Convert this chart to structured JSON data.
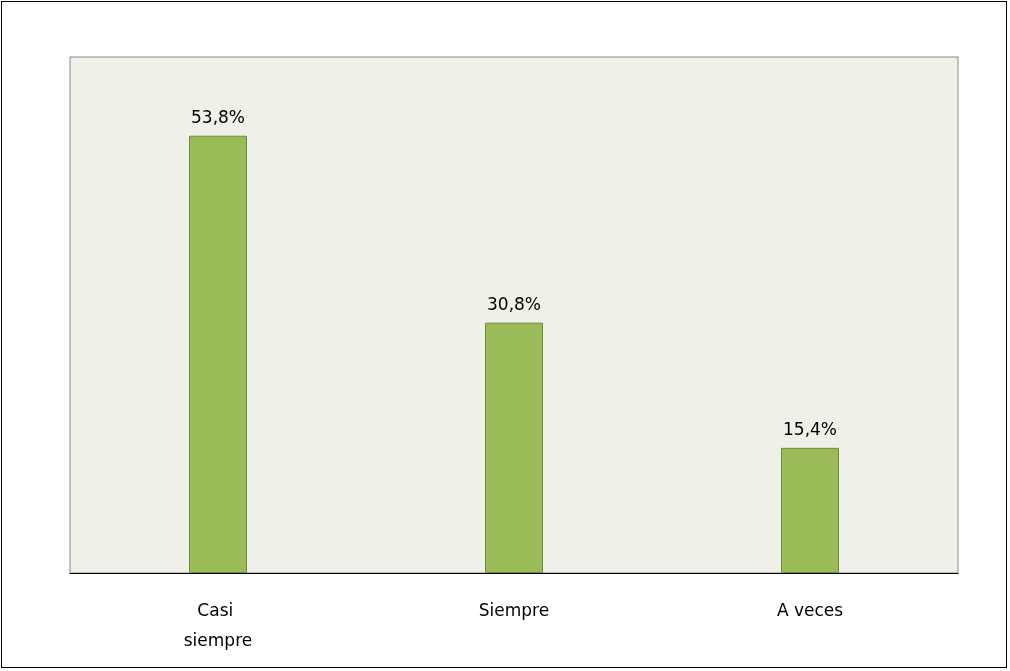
{
  "chart_data": {
    "type": "bar",
    "categories": [
      "Casi siempre",
      "Siempre",
      "A veces"
    ],
    "values": [
      53.8,
      30.8,
      15.4
    ],
    "value_labels": [
      "53,8%",
      "30,8%",
      "15,4%"
    ],
    "color": "#9bbb59"
  }
}
